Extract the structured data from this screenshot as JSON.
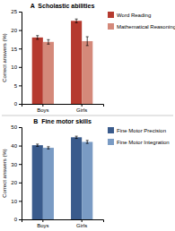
{
  "chart_data": [
    {
      "type": "bar",
      "title": "A  Scholastic abilities",
      "ylabel": "Correct answers (%)",
      "categories": [
        "Boys",
        "Girls"
      ],
      "series": [
        {
          "name": "Word Reading",
          "color": "#b53a2f",
          "values": [
            18.0,
            22.5
          ],
          "errors": [
            0.5,
            0.5
          ]
        },
        {
          "name": "Mathematical Reasoning",
          "color": "#d4897a",
          "values": [
            16.8,
            17.0
          ],
          "errors": [
            0.6,
            1.2
          ]
        }
      ],
      "ylim": [
        0,
        25
      ],
      "yticks": [
        0,
        5,
        10,
        15,
        20,
        25
      ],
      "legend": "right"
    },
    {
      "type": "bar",
      "title": "B  Fine motor skills",
      "ylabel": "Correct answers (%)",
      "categories": [
        "Boys",
        "Girls"
      ],
      "series": [
        {
          "name": "Fine Motor Precision",
          "color": "#3a5b8c",
          "values": [
            40.2,
            44.5
          ],
          "errors": [
            0.6,
            0.6
          ]
        },
        {
          "name": "Fine Motor Integration",
          "color": "#7a9bc4",
          "values": [
            38.8,
            42.0
          ],
          "errors": [
            0.6,
            0.8
          ]
        }
      ],
      "ylim": [
        0,
        50
      ],
      "yticks": [
        0,
        10,
        20,
        30,
        40,
        50
      ],
      "legend": "right"
    }
  ]
}
